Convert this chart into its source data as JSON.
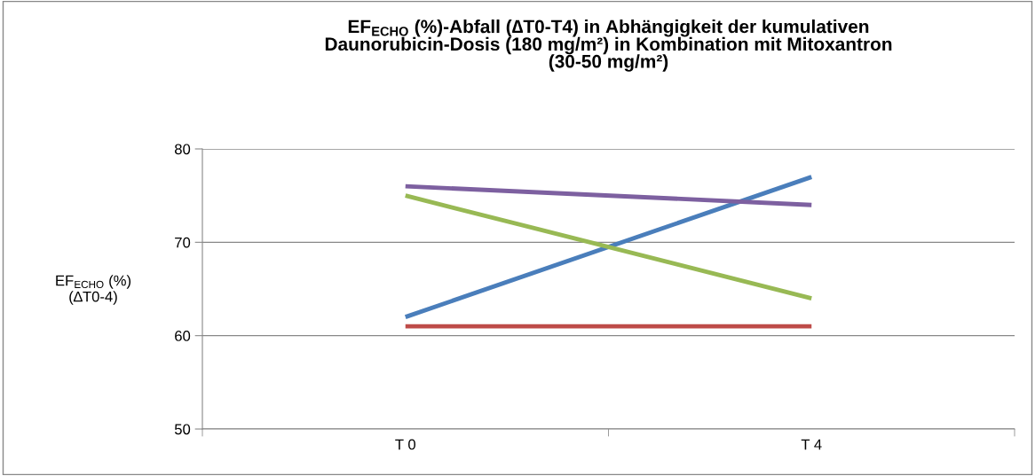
{
  "chart_data": {
    "type": "line",
    "title": "EF$_{ECHO}$ (%)-Abfall (∆T0-T4) in Abhängigkeit der kumulativen\nDaunorubicin-Dosis (180 mg/m²) in Kombination mit Mitoxantron\n(30-50 mg/m²)",
    "ylabel": "EF$_{ECHO}$ (%)\n(∆T0-4)",
    "categories": [
      "T 0",
      "T 4"
    ],
    "series": [
      {
        "color": "#4a7ebb",
        "values": [
          62,
          77
        ]
      },
      {
        "color": "#be4b48",
        "values": [
          61,
          61
        ]
      },
      {
        "color": "#98b954",
        "values": [
          75,
          64
        ]
      },
      {
        "color": "#7d60a0",
        "values": [
          76,
          74
        ]
      }
    ],
    "ylim": [
      50,
      80
    ],
    "yticks": [
      50,
      60,
      70,
      80
    ],
    "grid": "y",
    "marker": "none",
    "line_style": "solid"
  }
}
